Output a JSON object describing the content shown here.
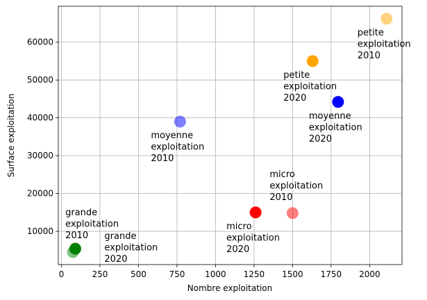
{
  "chart_data": {
    "type": "scatter",
    "xlabel": "Nombre exploitation",
    "ylabel": "Surface exploitation",
    "xlim": [
      -20,
      2210
    ],
    "ylim": [
      1200,
      69500
    ],
    "xticks": [
      0,
      250,
      500,
      750,
      1000,
      1250,
      1500,
      1750,
      2000
    ],
    "yticks": [
      10000,
      20000,
      30000,
      40000,
      50000,
      60000
    ],
    "grid": true,
    "points": [
      {
        "x": 1260,
        "y": 15000,
        "color": "#ff0000",
        "opacity": 1.0,
        "label": [
          "micro",
          "exploitation",
          "2020"
        ],
        "anchor": "below-left"
      },
      {
        "x": 1500,
        "y": 14800,
        "color": "#ff0000",
        "opacity": 0.5,
        "label": [
          "micro",
          "exploitation",
          "2010"
        ],
        "anchor": "above-left"
      },
      {
        "x": 1630,
        "y": 55000,
        "color": "#ffa500",
        "opacity": 1.0,
        "label": [
          "petite",
          "exploitation",
          "2020"
        ],
        "anchor": "below-left"
      },
      {
        "x": 2110,
        "y": 66200,
        "color": "#ffa500",
        "opacity": 0.5,
        "label": [
          "petite",
          "exploitation",
          "2010"
        ],
        "anchor": "below-left"
      },
      {
        "x": 1795,
        "y": 44200,
        "color": "#0000ff",
        "opacity": 1.0,
        "label": [
          "moyenne",
          "exploitation",
          "2020"
        ],
        "anchor": "below-left"
      },
      {
        "x": 770,
        "y": 39000,
        "color": "#0000ff",
        "opacity": 0.5,
        "label": [
          "moyenne",
          "exploitation",
          "2010"
        ],
        "anchor": "below-left"
      },
      {
        "x": 90,
        "y": 5400,
        "color": "#008000",
        "opacity": 1.0,
        "label": [
          "grande",
          "exploitation",
          "2020"
        ],
        "anchor": "right"
      },
      {
        "x": 75,
        "y": 4500,
        "color": "#008000",
        "opacity": 0.5,
        "label": [
          "grande",
          "exploitation",
          "2010"
        ],
        "anchor": "above-left"
      }
    ]
  }
}
